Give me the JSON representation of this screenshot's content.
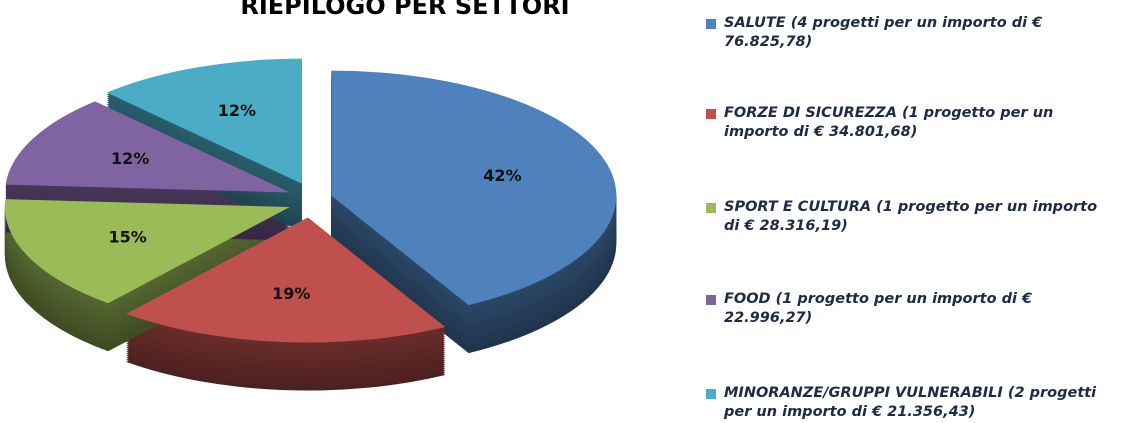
{
  "chart_data": {
    "type": "pie",
    "title": "RIEPILOGO PER SETTORI",
    "categories": [
      "SALUTE (4 progetti per un importo di € 76.825,78)",
      "FORZE DI SICUREZZA (1 progetto per un importo di € 34.801,68)",
      "SPORT E CULTURA (1 progetto per un importo di € 28.316,19)",
      "FOOD (1 progetto per un importo di € 22.996,27)",
      "MINORANZE/GRUPPI VULNERABILI (2 progetti per un importo di € 21.356,43)"
    ],
    "values": [
      42,
      19,
      15,
      12,
      12
    ],
    "value_labels": [
      "42%",
      "19%",
      "15%",
      "12%",
      "12%"
    ],
    "colors": [
      "#4f81bd",
      "#c0504d",
      "#9bbb59",
      "#8064a2",
      "#4bacc6"
    ],
    "legend": "right"
  }
}
